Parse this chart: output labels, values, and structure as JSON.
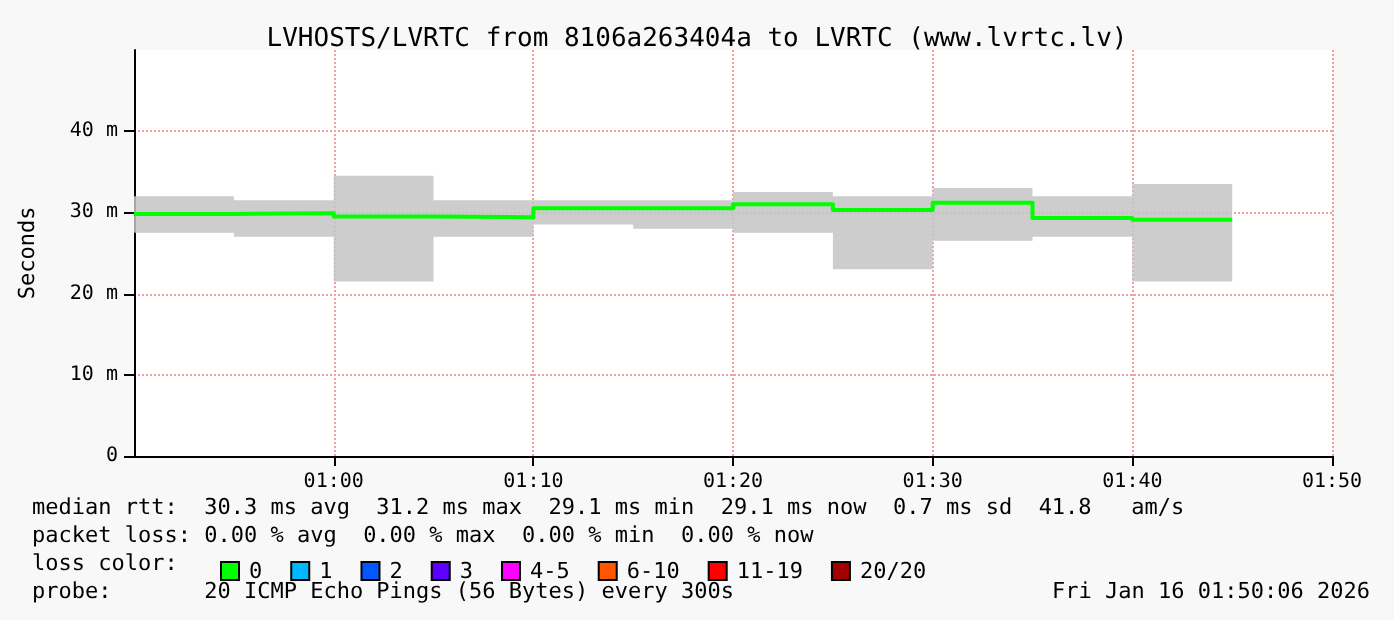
{
  "chart_data": {
    "type": "step",
    "title": "LVHOSTS/LVRTC from 8106a263404a to LVRTC (www.lvrtc.lv)",
    "ylabel": "Seconds",
    "x": [
      0.8333,
      0.9167,
      1,
      1.0833,
      1.1667,
      1.25,
      1.3333,
      1.4167,
      1.5,
      1.5833,
      1.6667,
      1.75
    ],
    "xlim": [
      0.8333,
      1.8333
    ],
    "xticks": [
      {
        "value": 1,
        "label": "01:00"
      },
      {
        "value": 1.1667,
        "label": "01:10"
      },
      {
        "value": 1.3333,
        "label": "01:20"
      },
      {
        "value": 1.5,
        "label": "01:30"
      },
      {
        "value": 1.6667,
        "label": "01:40"
      },
      {
        "value": 1.8333,
        "label": "01:50"
      }
    ],
    "ylim": [
      0,
      50
    ],
    "yticks": [
      0,
      {
        "value": 10,
        "label": "10 m"
      },
      {
        "value": 20,
        "label": "20 m"
      },
      {
        "value": 30,
        "label": "30 m"
      },
      {
        "value": 40,
        "label": "40 m"
      }
    ],
    "grid": true,
    "legend": "bottom left",
    "series": [
      {
        "name": "0",
        "color": "#00ff00",
        "values": [
          29.8,
          29.9,
          29.5,
          29.4,
          30.5,
          30.5,
          31,
          30.3,
          31.2,
          29.3,
          29.1,
          29.1
        ],
        "lower": [
          27.5,
          27,
          21.5,
          27,
          28.5,
          28,
          27.5,
          23,
          26.5,
          27,
          21.5,
          21.5
        ],
        "upper": [
          32,
          31.5,
          34.5,
          31.5,
          31.5,
          31.5,
          32.5,
          32,
          33,
          32,
          33.5,
          33.5
        ]
      },
      {
        "name": "1",
        "color": "#00b8ff",
        "values": [
          null,
          null,
          null,
          null,
          null,
          null,
          null,
          null,
          null,
          null,
          null,
          null
        ]
      },
      {
        "name": "2",
        "color": "#0059ff",
        "values": [
          null,
          null,
          null,
          null,
          null,
          null,
          null,
          null,
          null,
          null,
          null,
          null
        ]
      },
      {
        "name": "3",
        "color": "#5e00ff",
        "values": [
          null,
          null,
          null,
          null,
          null,
          null,
          null,
          null,
          null,
          null,
          null,
          null
        ]
      },
      {
        "name": "4-5",
        "color": "#ff00ff",
        "values": [
          null,
          null,
          null,
          null,
          null,
          null,
          null,
          null,
          null,
          null,
          null,
          null
        ]
      },
      {
        "name": "6-10",
        "color": "#ff5500",
        "values": [
          null,
          null,
          null,
          null,
          null,
          null,
          null,
          null,
          null,
          null,
          null,
          null
        ]
      },
      {
        "name": "11-19",
        "color": "#ff0000",
        "values": [
          null,
          null,
          null,
          null,
          null,
          null,
          null,
          null,
          null,
          null,
          null,
          null
        ]
      },
      {
        "name": "20/20",
        "color": "#a10000",
        "values": [
          null,
          null,
          null,
          null,
          null,
          null,
          null,
          null,
          null,
          null,
          null,
          null
        ]
      }
    ],
    "annotations": [
      "median rtt:  30.3 ms avg  31.2 ms max  29.1 ms min  29.1 ms now  0.7 ms sd  41.8   am/s",
      "packet loss: 0.00 % avg  0.00 % max  0.00 % min  0.00 % now",
      "loss color:",
      "probe:       20 ICMP Echo Pings (56 Bytes) every 300s",
      "Fri Jan 16 01:50:06 2026"
    ]
  }
}
